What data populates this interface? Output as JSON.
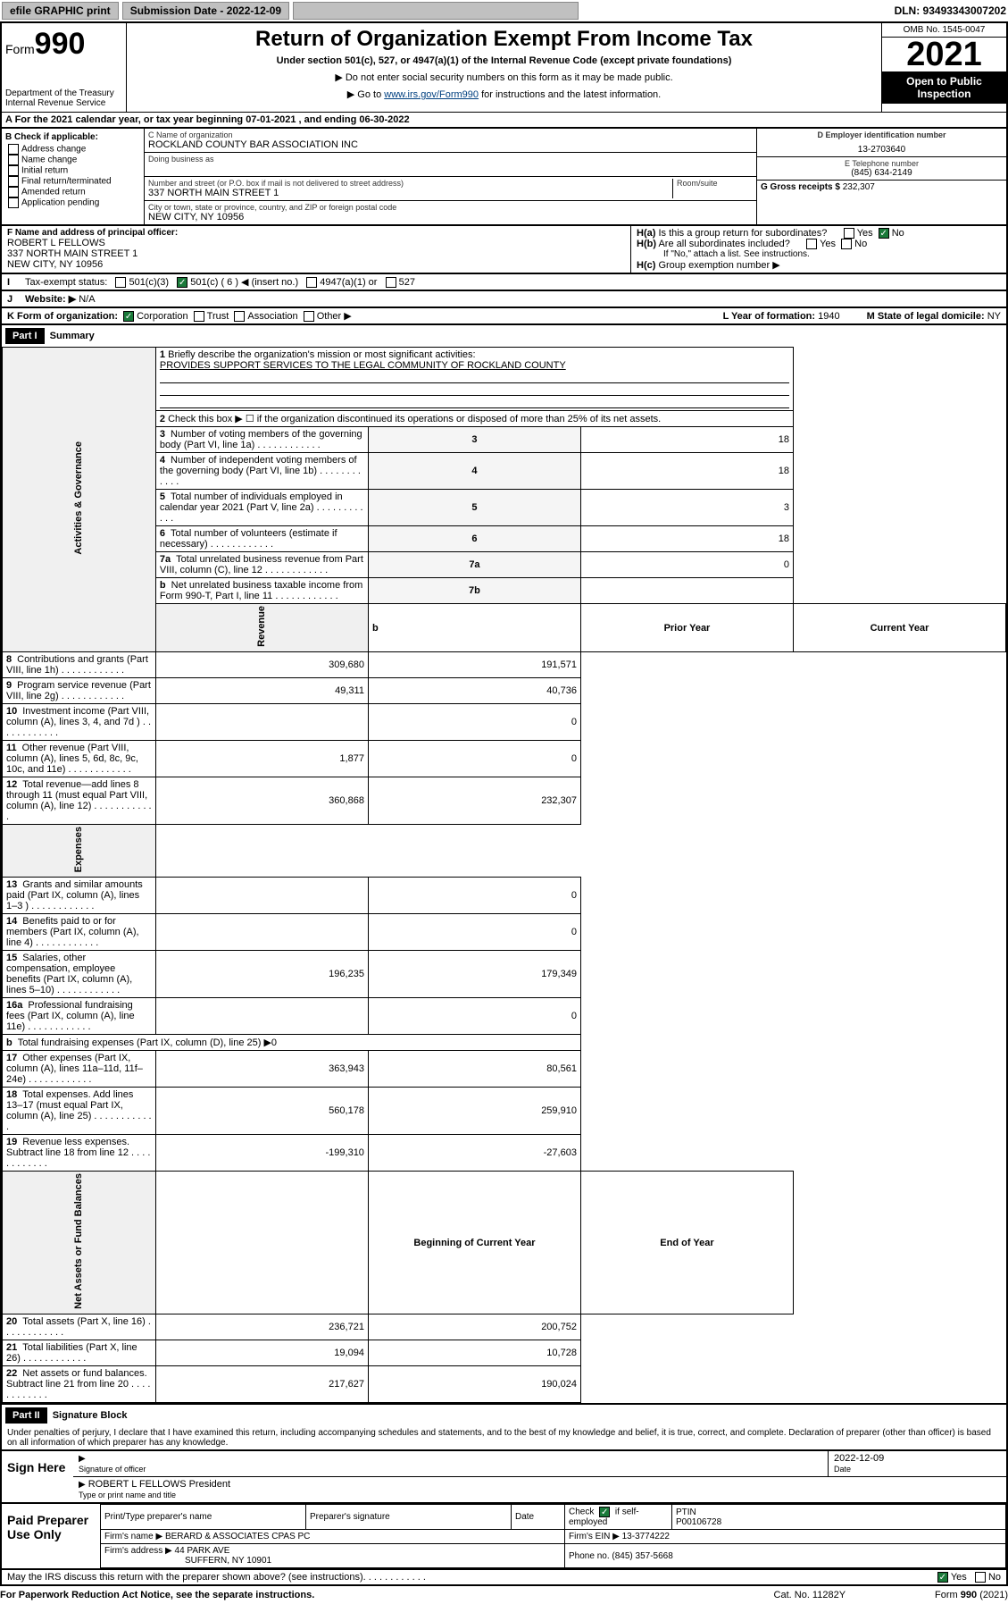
{
  "topbar": {
    "efile": "efile GRAPHIC print",
    "submission": "Submission Date - 2022-12-09",
    "dln": "DLN: 93493343007202"
  },
  "header": {
    "form_prefix": "Form",
    "form_no": "990",
    "title": "Return of Organization Exempt From Income Tax",
    "subtitle": "Under section 501(c), 527, or 4947(a)(1) of the Internal Revenue Code (except private foundations)",
    "note1": "▶ Do not enter social security numbers on this form as it may be made public.",
    "note2_pre": "▶ Go to ",
    "note2_link": "www.irs.gov/Form990",
    "note2_post": " for instructions and the latest information.",
    "dept": "Department of the Treasury",
    "irs": "Internal Revenue Service",
    "omb": "OMB No. 1545-0047",
    "year": "2021",
    "inspection": "Open to Public Inspection"
  },
  "section_a": "A For the 2021 calendar year, or tax year beginning 07-01-2021   , and ending 06-30-2022",
  "section_b": {
    "hdr": "B Check if applicable:",
    "items": [
      "Address change",
      "Name change",
      "Initial return",
      "Final return/terminated",
      "Amended return",
      "Application pending"
    ]
  },
  "section_c": {
    "name_lbl": "C Name of organization",
    "name": "ROCKLAND COUNTY BAR ASSOCIATION INC",
    "dba_lbl": "Doing business as",
    "dba": "",
    "addr_lbl": "Number and street (or P.O. box if mail is not delivered to street address)",
    "room_lbl": "Room/suite",
    "addr": "337 NORTH MAIN STREET 1",
    "city_lbl": "City or town, state or province, country, and ZIP or foreign postal code",
    "city": "NEW CITY, NY  10956"
  },
  "section_d": {
    "lbl": "D Employer identification number",
    "val": "13-2703640"
  },
  "section_e": {
    "lbl": "E Telephone number",
    "val": "(845) 634-2149"
  },
  "section_g": {
    "lbl": "G Gross receipts $",
    "val": "232,307"
  },
  "section_f": {
    "lbl": "F  Name and address of principal officer:",
    "name": "ROBERT L FELLOWS",
    "addr": "337 NORTH MAIN STREET 1",
    "city": "NEW CITY, NY  10956"
  },
  "section_h": {
    "a": "Is this a group return for subordinates?",
    "b": "Are all subordinates included?",
    "note": "If \"No,\" attach a list. See instructions.",
    "c": "Group exemption number ▶"
  },
  "section_i": {
    "lbl": "Tax-exempt status:",
    "c3": "501(c)(3)",
    "c_other": "501(c) ( 6 ) ◀ (insert no.)",
    "a1": "4947(a)(1) or",
    "s527": "527"
  },
  "section_j": {
    "lbl": "Website: ▶",
    "val": "N/A"
  },
  "section_k": {
    "lbl": "K Form of organization:",
    "corp": "Corporation",
    "trust": "Trust",
    "assoc": "Association",
    "other": "Other ▶"
  },
  "section_l": {
    "lbl": "L Year of formation:",
    "val": "1940"
  },
  "section_m": {
    "lbl": "M State of legal domicile:",
    "val": "NY"
  },
  "part1": {
    "hdr": "Part I",
    "title": "Summary",
    "line1_lbl": "Briefly describe the organization's mission or most significant activities:",
    "line1_val": "PROVIDES SUPPORT SERVICES TO THE LEGAL COMMUNITY OF ROCKLAND COUNTY",
    "line2": "Check this box ▶ ☐  if the organization discontinued its operations or disposed of more than 25% of its net assets.",
    "vtabs": [
      "Activities & Governance",
      "Revenue",
      "Expenses",
      "Net Assets or Fund Balances"
    ],
    "hdr_prior": "Prior Year",
    "hdr_current": "Current Year",
    "hdr_begin": "Beginning of Current Year",
    "hdr_end": "End of Year"
  },
  "gov": [
    {
      "n": "3",
      "t": "Number of voting members of the governing body (Part VI, line 1a)",
      "c": "3",
      "v": "18"
    },
    {
      "n": "4",
      "t": "Number of independent voting members of the governing body (Part VI, line 1b)",
      "c": "4",
      "v": "18"
    },
    {
      "n": "5",
      "t": "Total number of individuals employed in calendar year 2021 (Part V, line 2a)",
      "c": "5",
      "v": "3"
    },
    {
      "n": "6",
      "t": "Total number of volunteers (estimate if necessary)",
      "c": "6",
      "v": "18"
    },
    {
      "n": "7a",
      "t": "Total unrelated business revenue from Part VIII, column (C), line 12",
      "c": "7a",
      "v": "0"
    },
    {
      "n": "b",
      "t": "Net unrelated business taxable income from Form 990-T, Part I, line 11",
      "c": "7b",
      "v": ""
    }
  ],
  "rev": [
    {
      "n": "8",
      "t": "Contributions and grants (Part VIII, line 1h)",
      "p": "309,680",
      "c": "191,571"
    },
    {
      "n": "9",
      "t": "Program service revenue (Part VIII, line 2g)",
      "p": "49,311",
      "c": "40,736"
    },
    {
      "n": "10",
      "t": "Investment income (Part VIII, column (A), lines 3, 4, and 7d )",
      "p": "",
      "c": "0"
    },
    {
      "n": "11",
      "t": "Other revenue (Part VIII, column (A), lines 5, 6d, 8c, 9c, 10c, and 11e)",
      "p": "1,877",
      "c": "0"
    },
    {
      "n": "12",
      "t": "Total revenue—add lines 8 through 11 (must equal Part VIII, column (A), line 12)",
      "p": "360,868",
      "c": "232,307"
    }
  ],
  "exp": [
    {
      "n": "13",
      "t": "Grants and similar amounts paid (Part IX, column (A), lines 1–3 )",
      "p": "",
      "c": "0"
    },
    {
      "n": "14",
      "t": "Benefits paid to or for members (Part IX, column (A), line 4)",
      "p": "",
      "c": "0"
    },
    {
      "n": "15",
      "t": "Salaries, other compensation, employee benefits (Part IX, column (A), lines 5–10)",
      "p": "196,235",
      "c": "179,349"
    },
    {
      "n": "16a",
      "t": "Professional fundraising fees (Part IX, column (A), line 11e)",
      "p": "",
      "c": "0"
    },
    {
      "n": "b",
      "t": "Total fundraising expenses (Part IX, column (D), line 25) ▶0",
      "p": "—",
      "c": "—"
    },
    {
      "n": "17",
      "t": "Other expenses (Part IX, column (A), lines 11a–11d, 11f–24e)",
      "p": "363,943",
      "c": "80,561"
    },
    {
      "n": "18",
      "t": "Total expenses. Add lines 13–17 (must equal Part IX, column (A), line 25)",
      "p": "560,178",
      "c": "259,910"
    },
    {
      "n": "19",
      "t": "Revenue less expenses. Subtract line 18 from line 12",
      "p": "-199,310",
      "c": "-27,603"
    }
  ],
  "net": [
    {
      "n": "20",
      "t": "Total assets (Part X, line 16)",
      "p": "236,721",
      "c": "200,752"
    },
    {
      "n": "21",
      "t": "Total liabilities (Part X, line 26)",
      "p": "19,094",
      "c": "10,728"
    },
    {
      "n": "22",
      "t": "Net assets or fund balances. Subtract line 21 from line 20",
      "p": "217,627",
      "c": "190,024"
    }
  ],
  "part2": {
    "hdr": "Part II",
    "title": "Signature Block",
    "decl": "Under penalties of perjury, I declare that I have examined this return, including accompanying schedules and statements, and to the best of my knowledge and belief, it is true, correct, and complete. Declaration of preparer (other than officer) is based on all information of which preparer has any knowledge."
  },
  "sign": {
    "here": "Sign Here",
    "sig_lbl": "Signature of officer",
    "date_lbl": "Date",
    "date": "2022-12-09",
    "name": "ROBERT L FELLOWS  President",
    "name_lbl": "Type or print name and title"
  },
  "prep": {
    "hdr": "Paid Preparer Use Only",
    "cols": [
      "Print/Type preparer's name",
      "Preparer's signature",
      "Date"
    ],
    "check_lbl": "Check",
    "self_emp": "if self-employed",
    "ptin_lbl": "PTIN",
    "ptin": "P00106728",
    "firm_name_lbl": "Firm's name   ▶",
    "firm_name": "BERARD & ASSOCIATES CPAS PC",
    "firm_ein_lbl": "Firm's EIN ▶",
    "firm_ein": "13-3774222",
    "firm_addr_lbl": "Firm's address ▶",
    "firm_addr": "44 PARK AVE",
    "firm_city": "SUFFERN, NY  10901",
    "phone_lbl": "Phone no.",
    "phone": "(845) 357-5668"
  },
  "discuss": "May the IRS discuss this return with the preparer shown above? (see instructions)",
  "footer": {
    "pra": "For Paperwork Reduction Act Notice, see the separate instructions.",
    "cat": "Cat. No. 11282Y",
    "form": "Form 990 (2021)"
  },
  "yes": "Yes",
  "no": "No"
}
